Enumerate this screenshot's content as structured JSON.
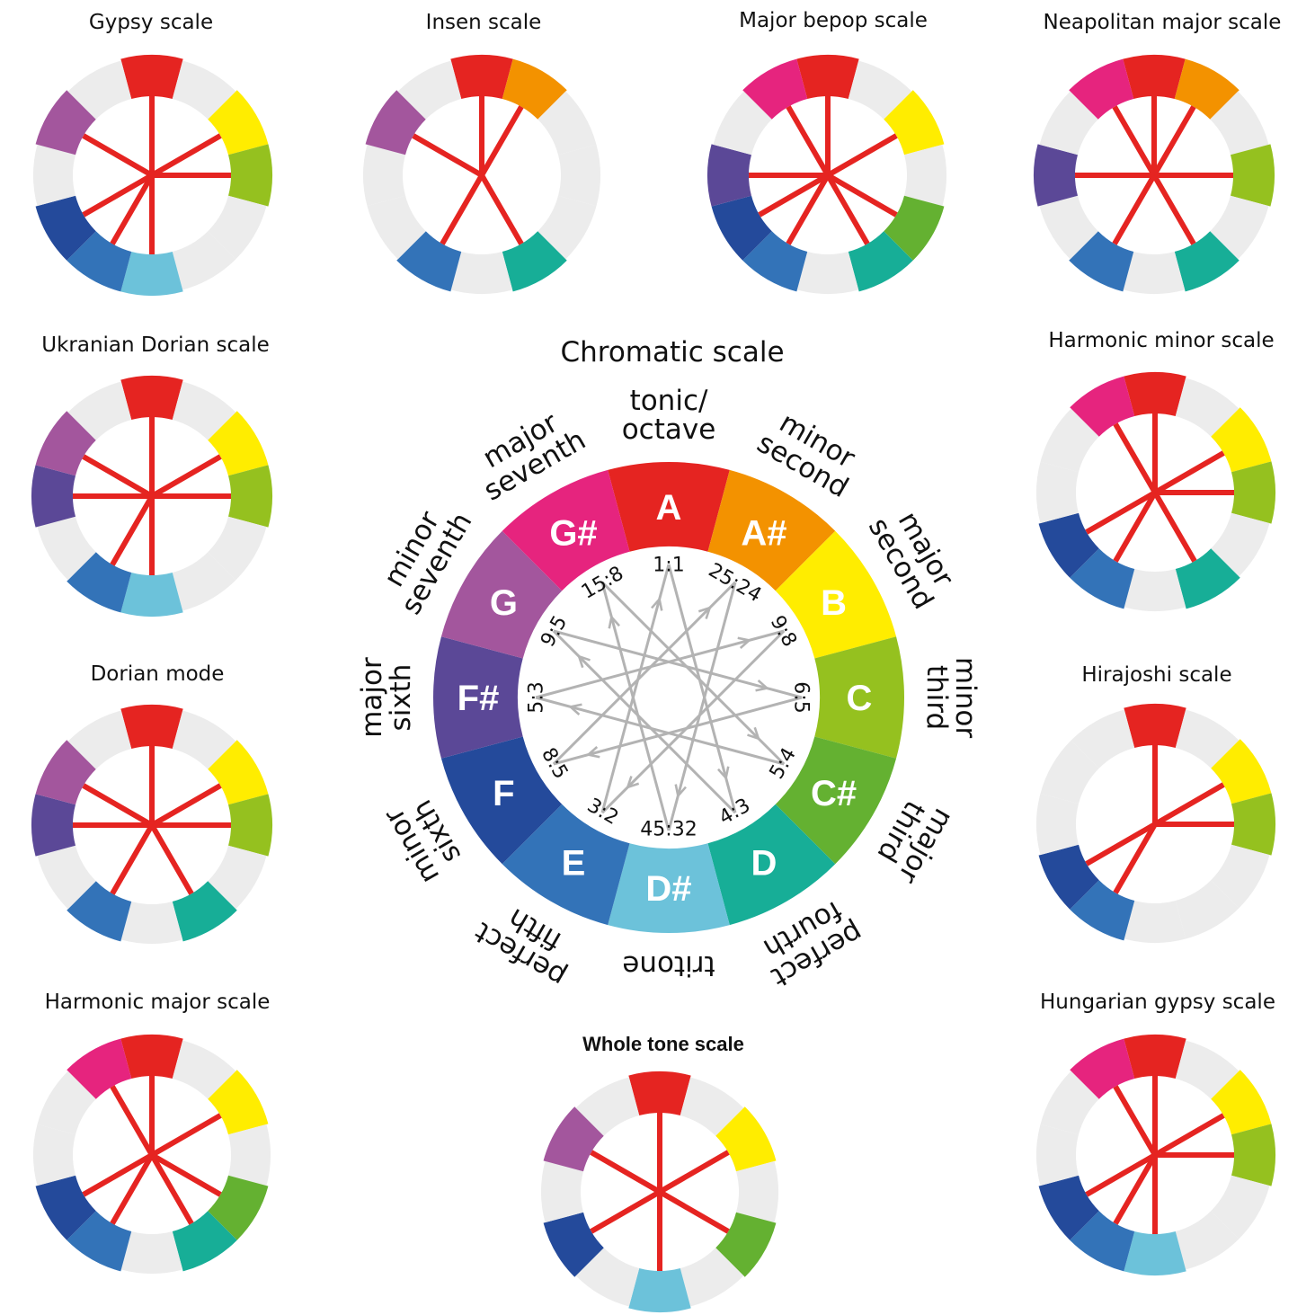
{
  "diagram": {
    "ring_colors": [
      "#e52421",
      "#f39200",
      "#ffed00",
      "#95c11f",
      "#64b131",
      "#17ae97",
      "#6cc2da",
      "#3373b8",
      "#244a9b",
      "#5b4897",
      "#a3569d",
      "#e6247e"
    ],
    "inactive_color": "#ececec",
    "line_color": "#e52421",
    "arrow_color": "#b3b3b3",
    "center": {
      "title": "Chromatic scale",
      "notes": [
        "A",
        "A#",
        "B",
        "C",
        "C#",
        "D",
        "D#",
        "E",
        "F",
        "F#",
        "G",
        "G#"
      ],
      "intervals": [
        [
          "tonic/",
          "octave"
        ],
        [
          "minor",
          "second"
        ],
        [
          "major",
          "second"
        ],
        [
          "minor",
          "third"
        ],
        [
          "major",
          "third"
        ],
        [
          "perfect",
          "fourth"
        ],
        [
          "tritone"
        ],
        [
          "perfect",
          "fifth"
        ],
        [
          "minor",
          "sixth"
        ],
        [
          "major",
          "sixth"
        ],
        [
          "minor",
          "seventh"
        ],
        [
          "major",
          "seventh"
        ]
      ],
      "ratios": [
        "1:1",
        "25:24",
        "9:8",
        "6:5",
        "5:4",
        "4:3",
        "45:32",
        "3:2",
        "8:5",
        "5:3",
        "9:5",
        "15:8"
      ]
    },
    "scales": [
      {
        "id": "gypsy",
        "title": "Gypsy scale",
        "notes": [
          0,
          2,
          3,
          6,
          7,
          8,
          10
        ]
      },
      {
        "id": "insen",
        "title": "Insen scale",
        "notes": [
          0,
          1,
          5,
          7,
          10
        ]
      },
      {
        "id": "major-bepop",
        "title": "Major bepop scale",
        "notes": [
          0,
          2,
          4,
          5,
          7,
          8,
          9,
          11
        ]
      },
      {
        "id": "neapolitan-major",
        "title": "Neapolitan major scale",
        "notes": [
          0,
          1,
          3,
          5,
          7,
          9,
          11
        ]
      },
      {
        "id": "ukranian-dorian",
        "title": "Ukranian Dorian scale",
        "notes": [
          0,
          2,
          3,
          6,
          7,
          9,
          10
        ]
      },
      {
        "id": "harmonic-minor",
        "title": "Harmonic minor scale",
        "notes": [
          0,
          2,
          3,
          5,
          7,
          8,
          11
        ]
      },
      {
        "id": "dorian",
        "title": "Dorian mode",
        "notes": [
          0,
          2,
          3,
          5,
          7,
          9,
          10
        ]
      },
      {
        "id": "hirajoshi",
        "title": "Hirajoshi scale",
        "notes": [
          0,
          2,
          3,
          7,
          8
        ]
      },
      {
        "id": "harmonic-major",
        "title": "Harmonic major scale",
        "notes": [
          0,
          2,
          4,
          5,
          7,
          8,
          11
        ]
      },
      {
        "id": "whole-tone",
        "title": "Whole tone scale",
        "notes": [
          0,
          2,
          4,
          6,
          8,
          10
        ]
      },
      {
        "id": "hungarian-gypsy",
        "title": "Hungarian gypsy scale",
        "notes": [
          0,
          2,
          3,
          6,
          7,
          8,
          11
        ]
      }
    ]
  }
}
